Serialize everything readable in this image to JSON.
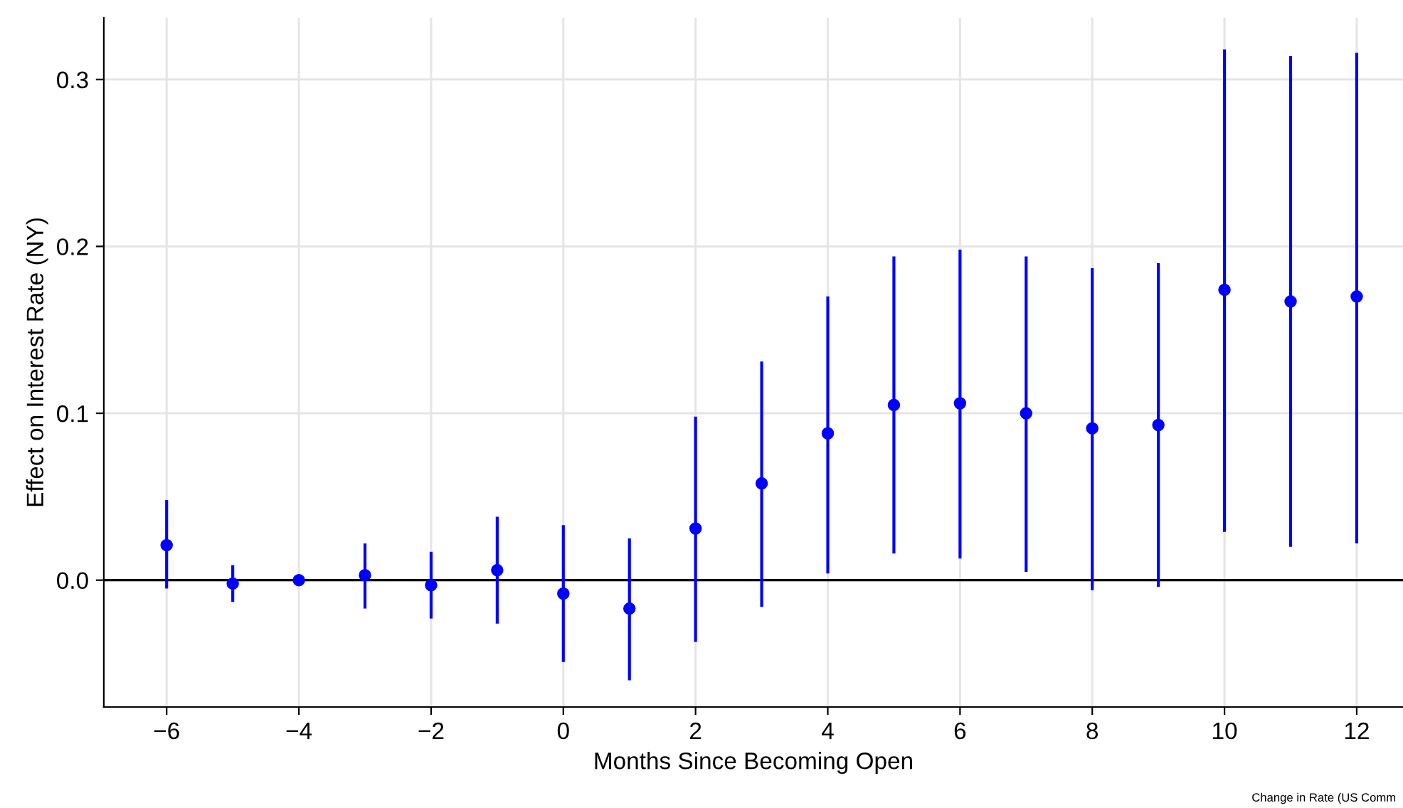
{
  "chart_data": {
    "type": "scatter",
    "xlabel": "Months Since Becoming Open",
    "ylabel": "Effect on Interest Rate (NY)",
    "x": [
      -6,
      -5,
      -4,
      -3,
      -2,
      -1,
      0,
      1,
      2,
      3,
      4,
      5,
      6,
      7,
      8,
      9,
      10,
      11,
      12
    ],
    "series": [
      {
        "color": "#0000ff",
        "values": [
          0.021,
          -0.002,
          0.0,
          0.003,
          -0.003,
          0.006,
          -0.008,
          -0.017,
          0.031,
          0.058,
          0.088,
          0.105,
          0.106,
          0.1,
          0.091,
          0.093,
          0.174,
          0.167,
          0.17
        ],
        "errors": [
          [
            -0.005,
            0.048
          ],
          [
            -0.013,
            0.009
          ],
          null,
          [
            -0.017,
            0.022
          ],
          [
            -0.023,
            0.017
          ],
          [
            -0.026,
            0.038
          ],
          [
            -0.049,
            0.033
          ],
          [
            -0.06,
            0.025
          ],
          [
            -0.037,
            0.098
          ],
          [
            -0.016,
            0.131
          ],
          [
            0.004,
            0.17
          ],
          [
            0.016,
            0.194
          ],
          [
            0.013,
            0.198
          ],
          [
            0.005,
            0.194
          ],
          [
            -0.006,
            0.187
          ],
          [
            -0.004,
            0.19
          ],
          [
            0.029,
            0.318
          ],
          [
            0.02,
            0.314
          ],
          [
            0.022,
            0.316
          ]
        ]
      }
    ],
    "xlim": [
      -6.95,
      12.7
    ],
    "ylim": [
      -0.076,
      0.337
    ],
    "xticks": [
      {
        "value": -6,
        "label": "−6"
      },
      {
        "value": -4,
        "label": "−4"
      },
      {
        "value": -2,
        "label": "−2"
      },
      0,
      2,
      4,
      6,
      8,
      10,
      12
    ],
    "yticks": [
      {
        "value": 0,
        "label": "0.0"
      },
      0.1,
      0.2,
      0.3
    ],
    "ref_lines": [
      {
        "axis": "y",
        "value": 0,
        "color": "#000000"
      }
    ],
    "grid": true,
    "marker": "circle",
    "annotations": [
      "Change in Rate (US Comm"
    ]
  }
}
